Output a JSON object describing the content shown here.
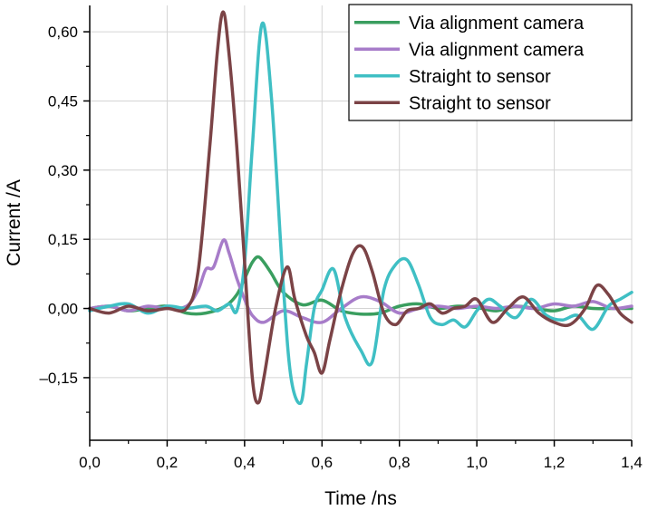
{
  "chart_data": {
    "type": "line",
    "title": "",
    "xlabel": "Time /ns",
    "ylabel": "Current /A",
    "xlim": [
      0.0,
      1.4
    ],
    "ylim": [
      -0.2857,
      0.6571
    ],
    "grid": true,
    "legend_position": "top-right",
    "x_ticks": [
      0.0,
      0.2,
      0.4,
      0.6,
      0.8,
      1.0,
      1.2,
      1.4
    ],
    "x_tick_labels": [
      "0,0",
      "0,2",
      "0,4",
      "0,6",
      "0,8",
      "1,0",
      "1,2",
      "1,4"
    ],
    "y_ticks": [
      -0.15,
      0.0,
      0.15,
      0.3,
      0.45,
      0.6
    ],
    "y_tick_labels": [
      "–0,15",
      "0,00",
      "0,15",
      "0,30",
      "0,45",
      "0,60"
    ],
    "series": [
      {
        "name": "Via alignment camera",
        "color": "#3a9e5f",
        "x": [
          0.0,
          0.05,
          0.1,
          0.15,
          0.2,
          0.25,
          0.3,
          0.35,
          0.38,
          0.4,
          0.42,
          0.435,
          0.45,
          0.47,
          0.5,
          0.55,
          0.6,
          0.65,
          0.7,
          0.75,
          0.8,
          0.85,
          0.9,
          0.95,
          1.0,
          1.05,
          1.1,
          1.15,
          1.2,
          1.25,
          1.3,
          1.35,
          1.4
        ],
        "y": [
          0.0,
          0.005,
          -0.005,
          0.0,
          0.005,
          -0.01,
          -0.01,
          0.005,
          0.03,
          0.065,
          0.1,
          0.112,
          0.1,
          0.075,
          0.035,
          0.008,
          0.018,
          -0.005,
          -0.012,
          -0.01,
          0.005,
          0.01,
          0.0,
          0.005,
          0.002,
          -0.005,
          0.005,
          0.0,
          -0.005,
          0.005,
          0.0,
          0.0,
          0.0
        ]
      },
      {
        "name": "Via alignment camera",
        "color": "#a77cc9",
        "x": [
          0.0,
          0.05,
          0.1,
          0.15,
          0.2,
          0.25,
          0.28,
          0.3,
          0.32,
          0.345,
          0.36,
          0.38,
          0.4,
          0.42,
          0.45,
          0.5,
          0.55,
          0.6,
          0.65,
          0.7,
          0.75,
          0.8,
          0.85,
          0.9,
          0.95,
          1.0,
          1.05,
          1.1,
          1.15,
          1.2,
          1.25,
          1.3,
          1.35,
          1.4
        ],
        "y": [
          0.0,
          0.005,
          -0.005,
          0.005,
          0.0,
          0.005,
          0.04,
          0.085,
          0.09,
          0.148,
          0.12,
          0.065,
          0.02,
          -0.015,
          -0.03,
          -0.005,
          -0.02,
          -0.03,
          0.0,
          0.025,
          0.015,
          -0.01,
          0.0,
          0.005,
          0.0,
          0.005,
          0.0,
          0.005,
          0.0,
          0.01,
          0.005,
          0.015,
          0.0,
          0.005
        ]
      },
      {
        "name": "Straight to sensor",
        "color": "#3fbfc4",
        "x": [
          0.0,
          0.05,
          0.1,
          0.15,
          0.2,
          0.25,
          0.3,
          0.33,
          0.36,
          0.38,
          0.4,
          0.42,
          0.445,
          0.47,
          0.5,
          0.52,
          0.545,
          0.56,
          0.58,
          0.6,
          0.63,
          0.66,
          0.7,
          0.73,
          0.76,
          0.79,
          0.82,
          0.85,
          0.88,
          0.91,
          0.94,
          0.97,
          1.0,
          1.03,
          1.06,
          1.1,
          1.14,
          1.18,
          1.22,
          1.26,
          1.3,
          1.34,
          1.37,
          1.4
        ],
        "y": [
          -0.005,
          0.005,
          0.01,
          -0.01,
          0.005,
          0.0,
          0.005,
          -0.005,
          0.01,
          -0.005,
          0.1,
          0.35,
          0.617,
          0.45,
          0.05,
          -0.15,
          -0.205,
          -0.12,
          0.0,
          0.04,
          0.085,
          -0.02,
          -0.09,
          -0.115,
          0.04,
          0.095,
          0.105,
          0.05,
          -0.02,
          -0.035,
          -0.025,
          -0.04,
          -0.005,
          0.02,
          0.005,
          -0.02,
          0.02,
          -0.015,
          -0.025,
          -0.015,
          -0.045,
          0.005,
          0.02,
          0.035
        ]
      },
      {
        "name": "Straight to sensor",
        "color": "#7b4346",
        "x": [
          0.0,
          0.05,
          0.1,
          0.15,
          0.2,
          0.25,
          0.28,
          0.31,
          0.33,
          0.345,
          0.36,
          0.38,
          0.4,
          0.42,
          0.435,
          0.45,
          0.48,
          0.51,
          0.53,
          0.56,
          0.58,
          0.6,
          0.62,
          0.65,
          0.68,
          0.705,
          0.73,
          0.76,
          0.79,
          0.82,
          0.85,
          0.88,
          0.91,
          0.94,
          0.97,
          1.0,
          1.04,
          1.08,
          1.12,
          1.16,
          1.2,
          1.24,
          1.28,
          1.31,
          1.34,
          1.37,
          1.4
        ],
        "y": [
          0.0,
          -0.01,
          0.005,
          -0.005,
          0.0,
          0.0,
          0.08,
          0.35,
          0.56,
          0.643,
          0.55,
          0.35,
          0.1,
          -0.15,
          -0.205,
          -0.15,
          0.0,
          0.09,
          0.02,
          -0.06,
          -0.095,
          -0.14,
          -0.07,
          0.04,
          0.12,
          0.133,
          0.08,
          -0.01,
          -0.035,
          -0.005,
          0.0,
          0.01,
          -0.01,
          0.0,
          0.005,
          0.02,
          -0.03,
          0.0,
          0.025,
          -0.01,
          -0.03,
          -0.035,
          0.0,
          0.05,
          0.03,
          -0.01,
          -0.03
        ]
      }
    ]
  }
}
